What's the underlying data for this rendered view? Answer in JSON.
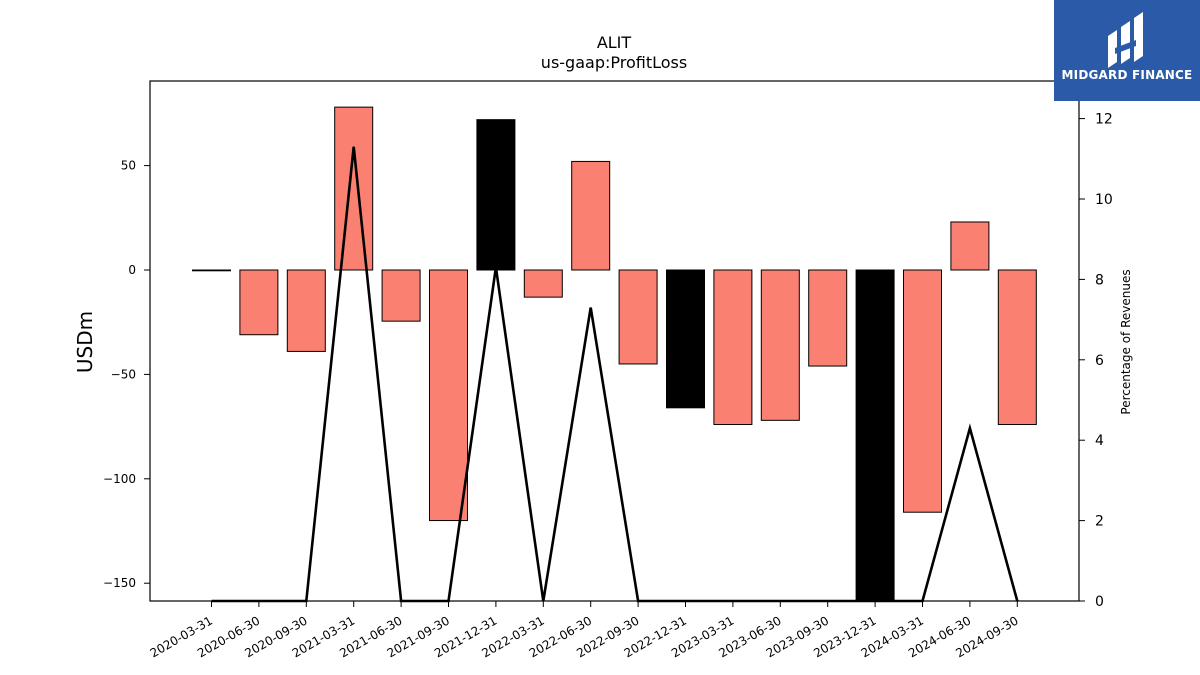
{
  "chart_data": {
    "type": "bar",
    "title": "ALIT",
    "subtitle": "us-gaap:ProfitLoss",
    "ylabel": "USDm",
    "y2label": "Percentage of Revenues",
    "ylim": [
      -158,
      90
    ],
    "y2lim": [
      0,
      13.4
    ],
    "yticks": [
      50,
      0,
      -50,
      -100,
      -150
    ],
    "y2ticks": [
      0,
      2,
      4,
      6,
      8,
      10,
      12
    ],
    "ytick_labels": [
      "50",
      "0",
      "−50",
      "−100",
      "−150"
    ],
    "categories": [
      "2020-03-31",
      "2020-06-30",
      "2020-09-30",
      "2021-03-31",
      "2021-06-30",
      "2021-09-30",
      "2021-12-31",
      "2022-03-31",
      "2022-06-30",
      "2022-09-30",
      "2022-12-31",
      "2023-03-31",
      "2023-06-30",
      "2023-09-30",
      "2023-12-31",
      "2024-03-31",
      "2024-06-30",
      "2024-09-30"
    ],
    "series": [
      {
        "values": [
          0,
          -31,
          -39,
          78,
          -24.5,
          -120,
          72,
          -13,
          52,
          -45,
          -66,
          -74,
          -72,
          -46,
          -160,
          -116,
          23,
          -74
        ],
        "colors": [
          "#000000",
          "#fa8072",
          "#fa8072",
          "#fa8072",
          "#fa8072",
          "#fa8072",
          "#000000",
          "#fa8072",
          "#fa8072",
          "#fa8072",
          "#000000",
          "#fa8072",
          "#fa8072",
          "#fa8072",
          "#000000",
          "#fa8072",
          "#fa8072",
          "#fa8072"
        ]
      },
      {
        "type": "line",
        "axis": "right",
        "values": [
          0,
          0,
          0,
          11.3,
          0,
          0,
          8.3,
          0,
          7.3,
          0,
          0,
          0,
          0,
          0,
          0,
          0,
          4.3,
          0
        ]
      }
    ],
    "grid": false
  },
  "logo": {
    "text": "MIDGARD FINANCE",
    "icon": "midgard-logo-icon",
    "background": "#2a5aa8"
  }
}
